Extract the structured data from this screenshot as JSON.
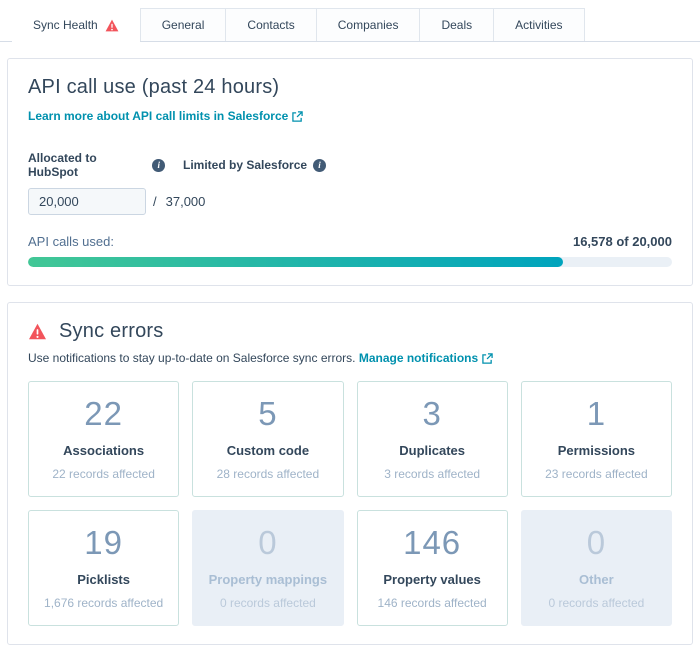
{
  "tabs": [
    {
      "label": "Sync Health",
      "active": true,
      "has_warning": true
    },
    {
      "label": "General",
      "active": false
    },
    {
      "label": "Contacts",
      "active": false
    },
    {
      "label": "Companies",
      "active": false
    },
    {
      "label": "Deals",
      "active": false
    },
    {
      "label": "Activities",
      "active": false
    }
  ],
  "api_panel": {
    "title": "API call use (past 24 hours)",
    "learn_more_link": "Learn more about API call limits in Salesforce",
    "allocated": {
      "label": "Allocated to HubSpot",
      "value": "20,000"
    },
    "limited": {
      "label": "Limited by Salesforce",
      "value": "37,000"
    },
    "separator": "/",
    "used_label": "API calls used:",
    "used_value": "16,578 of 20,000",
    "progress_percent": 83
  },
  "sync_errors": {
    "title": "Sync errors",
    "subtitle": "Use notifications to stay up-to-date on Salesforce sync errors.",
    "manage_link": "Manage notifications",
    "cards": [
      {
        "count": "22",
        "title": "Associations",
        "sub": "22 records affected",
        "disabled": false
      },
      {
        "count": "5",
        "title": "Custom code",
        "sub": "28 records affected",
        "disabled": false
      },
      {
        "count": "3",
        "title": "Duplicates",
        "sub": "3 records affected",
        "disabled": false
      },
      {
        "count": "1",
        "title": "Permissions",
        "sub": "23 records affected",
        "disabled": false
      },
      {
        "count": "19",
        "title": "Picklists",
        "sub": "1,676 records affected",
        "disabled": false
      },
      {
        "count": "0",
        "title": "Property mappings",
        "sub": "0 records affected",
        "disabled": true
      },
      {
        "count": "146",
        "title": "Property values",
        "sub": "146 records affected",
        "disabled": false
      },
      {
        "count": "0",
        "title": "Other",
        "sub": "0 records affected",
        "disabled": true
      }
    ]
  },
  "colors": {
    "link_teal": "#0091ae",
    "warning_red": "#f2545b",
    "progress_gradient_start": "#42c796",
    "progress_gradient_end": "#00a4bd",
    "count_slate": "#7c98b6",
    "disabled_card_bg": "#e9eff6"
  }
}
